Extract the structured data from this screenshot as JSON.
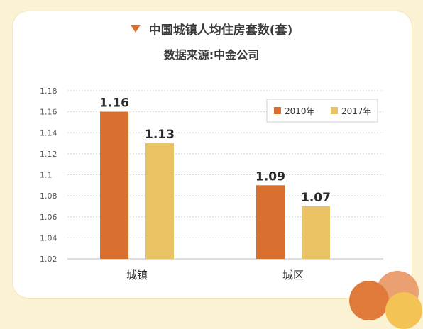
{
  "title": "中国城镇人均住房套数(套)",
  "subtitle": "数据来源:中金公司",
  "icons": {
    "title_marker": "triangle-down-icon"
  },
  "colors": {
    "background": "#fbf1d3",
    "card": "#ffffff",
    "title_marker": "#d96f2e",
    "series_2010": "#d96f2e",
    "series_2017": "#e8c264",
    "grid": "#d4d4d4",
    "deco_orange": "#e07a3b",
    "deco_peach": "#eba071",
    "deco_yellow": "#f3c356"
  },
  "chart_data": {
    "type": "bar",
    "categories": [
      "城镇",
      "城区"
    ],
    "series": [
      {
        "name": "2010年",
        "values": [
          1.16,
          1.09
        ],
        "labels": [
          "1.16",
          "1.09"
        ]
      },
      {
        "name": "2017年",
        "values": [
          1.13,
          1.07
        ],
        "labels": [
          "1.13",
          "1.07"
        ]
      }
    ],
    "ylim": [
      1.02,
      1.18
    ],
    "yticks": [
      "1.02",
      "1.04",
      "1.06",
      "1.08",
      "1.1",
      "1.12",
      "1.14",
      "1.16",
      "1.18"
    ],
    "grid": true,
    "legend": "top-right",
    "xlabel": "",
    "ylabel": ""
  }
}
